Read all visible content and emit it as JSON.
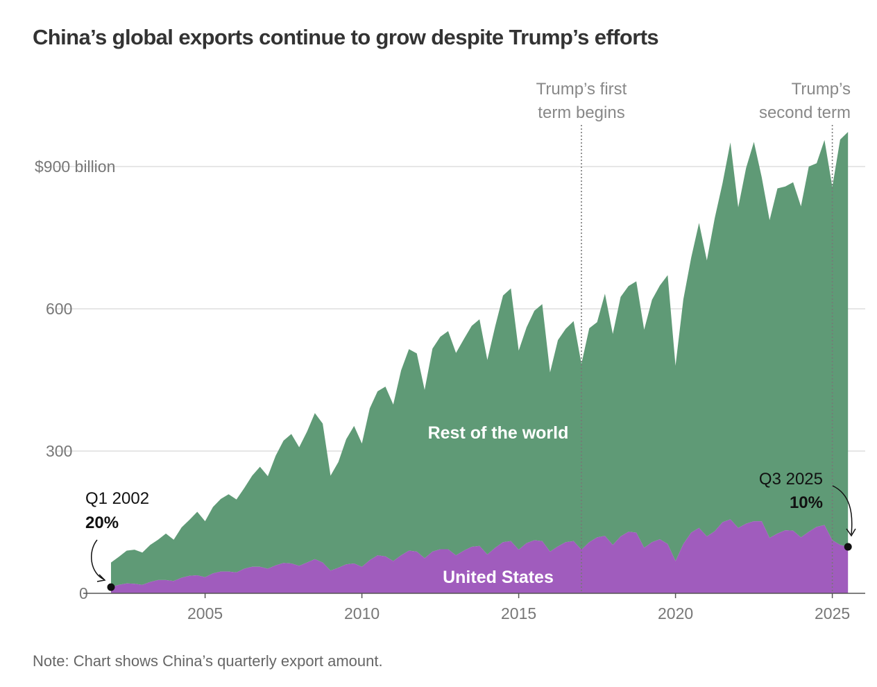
{
  "title": "China’s global exports continue to grow despite Trump’s efforts",
  "note": "Note: Chart shows China’s quarterly export amount.",
  "colors": {
    "rest_of_world": "#5f9a76",
    "united_states": "#a05cbd",
    "grid": "#dddddd"
  },
  "annotations": {
    "start": {
      "period": "Q1 2002",
      "share": "20%"
    },
    "end": {
      "period": "Q3 2025",
      "share": "10%"
    }
  },
  "events": [
    {
      "x": 2017.0,
      "line1": "Trump’s first",
      "line2": "term begins"
    },
    {
      "x": 2025.0,
      "line1": "Trump’s",
      "line2": "second term"
    }
  ],
  "chart_data": {
    "type": "area",
    "stacked": true,
    "title": "China’s global exports continue to grow despite Trump’s efforts",
    "xlabel": "",
    "ylabel": "",
    "y_unit": "$ billion",
    "ylim": [
      0,
      990
    ],
    "xlim": [
      2001.8,
      2026.2
    ],
    "y_ticks": [
      {
        "value": 0,
        "label": "0"
      },
      {
        "value": 300,
        "label": "300"
      },
      {
        "value": 600,
        "label": "600"
      },
      {
        "value": 900,
        "label": "$900 billion"
      }
    ],
    "x_ticks": [
      {
        "value": 2005,
        "label": "2005"
      },
      {
        "value": 2010,
        "label": "2010"
      },
      {
        "value": 2015,
        "label": "2015"
      },
      {
        "value": 2020,
        "label": "2020"
      },
      {
        "value": 2025,
        "label": "2025"
      }
    ],
    "grid": true,
    "x": [
      2002.0,
      2002.25,
      2002.5,
      2002.75,
      2003.0,
      2003.25,
      2003.5,
      2003.75,
      2004.0,
      2004.25,
      2004.5,
      2004.75,
      2005.0,
      2005.25,
      2005.5,
      2005.75,
      2006.0,
      2006.25,
      2006.5,
      2006.75,
      2007.0,
      2007.25,
      2007.5,
      2007.75,
      2008.0,
      2008.25,
      2008.5,
      2008.75,
      2009.0,
      2009.25,
      2009.5,
      2009.75,
      2010.0,
      2010.25,
      2010.5,
      2010.75,
      2011.0,
      2011.25,
      2011.5,
      2011.75,
      2012.0,
      2012.25,
      2012.5,
      2012.75,
      2013.0,
      2013.25,
      2013.5,
      2013.75,
      2014.0,
      2014.25,
      2014.5,
      2014.75,
      2015.0,
      2015.25,
      2015.5,
      2015.75,
      2016.0,
      2016.25,
      2016.5,
      2016.75,
      2017.0,
      2017.25,
      2017.5,
      2017.75,
      2018.0,
      2018.25,
      2018.5,
      2018.75,
      2019.0,
      2019.25,
      2019.5,
      2019.75,
      2020.0,
      2020.25,
      2020.5,
      2020.75,
      2021.0,
      2021.25,
      2021.5,
      2021.75,
      2022.0,
      2022.25,
      2022.5,
      2022.75,
      2023.0,
      2023.25,
      2023.5,
      2023.75,
      2024.0,
      2024.25,
      2024.5,
      2024.75,
      2025.0,
      2025.25,
      2025.5
    ],
    "series": [
      {
        "name": "United States",
        "values": [
          13,
          18,
          21,
          20,
          18,
          24,
          28,
          28,
          26,
          33,
          37,
          38,
          34,
          42,
          46,
          46,
          44,
          52,
          56,
          56,
          52,
          59,
          64,
          63,
          58,
          65,
          72,
          65,
          48,
          54,
          61,
          63,
          56,
          70,
          80,
          78,
          68,
          80,
          90,
          88,
          74,
          88,
          93,
          93,
          80,
          90,
          98,
          100,
          82,
          96,
          108,
          110,
          92,
          106,
          112,
          110,
          88,
          99,
          108,
          110,
          92,
          108,
          118,
          121,
          102,
          120,
          130,
          128,
          96,
          108,
          114,
          104,
          68,
          104,
          128,
          138,
          120,
          131,
          150,
          156,
          138,
          147,
          152,
          152,
          117,
          126,
          133,
          132,
          118,
          130,
          140,
          144,
          112,
          102,
          98
        ]
      },
      {
        "name": "Rest of the world",
        "values": [
          52,
          59,
          69,
          72,
          68,
          78,
          85,
          98,
          87,
          106,
          118,
          134,
          118,
          140,
          153,
          163,
          154,
          170,
          192,
          211,
          195,
          231,
          258,
          273,
          250,
          276,
          308,
          293,
          200,
          223,
          264,
          290,
          260,
          320,
          346,
          358,
          330,
          390,
          425,
          418,
          355,
          428,
          448,
          460,
          427,
          446,
          466,
          478,
          410,
          467,
          520,
          533,
          420,
          455,
          484,
          500,
          378,
          435,
          450,
          464,
          392,
          451,
          454,
          511,
          445,
          505,
          518,
          530,
          460,
          511,
          535,
          567,
          412,
          516,
          580,
          643,
          582,
          660,
          715,
          795,
          676,
          750,
          800,
          725,
          670,
          728,
          725,
          735,
          698,
          770,
          767,
          812,
          745,
          855,
          875
        ]
      }
    ]
  }
}
